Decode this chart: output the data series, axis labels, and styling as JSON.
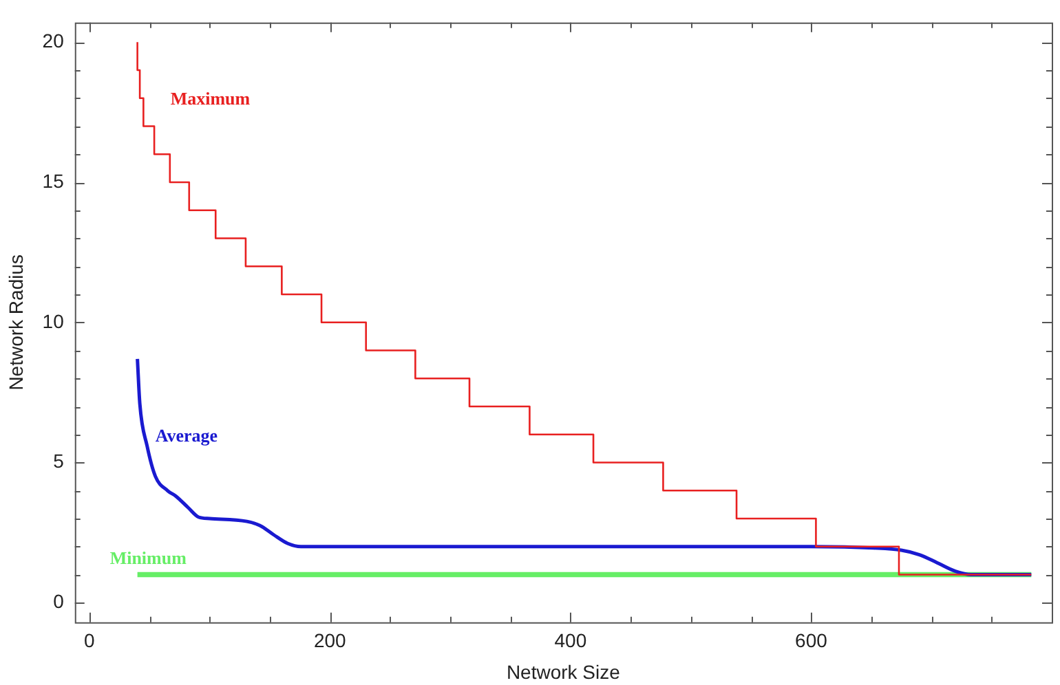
{
  "chart_data": {
    "type": "line",
    "xlabel": "Network Size",
    "ylabel": "Network Radius",
    "xlim": [
      -12,
      800
    ],
    "ylim": [
      -0.7,
      20.7
    ],
    "xticks": [
      0,
      {
        "value": 50,
        "label": null
      },
      {
        "value": 100,
        "label": null
      },
      {
        "value": 150,
        "label": null
      },
      200,
      {
        "value": 250,
        "label": null
      },
      {
        "value": 300,
        "label": null
      },
      {
        "value": 350,
        "label": null
      },
      400,
      {
        "value": 450,
        "label": null
      },
      {
        "value": 500,
        "label": null
      },
      {
        "value": 550,
        "label": null
      },
      600,
      {
        "value": 650,
        "label": null
      },
      {
        "value": 700,
        "label": null
      },
      {
        "value": 750,
        "label": null
      }
    ],
    "yticks": [
      0,
      {
        "value": 1,
        "label": null
      },
      {
        "value": 2,
        "label": null
      },
      {
        "value": 3,
        "label": null
      },
      {
        "value": 4,
        "label": null
      },
      5,
      {
        "value": 6,
        "label": null
      },
      {
        "value": 7,
        "label": null
      },
      {
        "value": 8,
        "label": null
      },
      {
        "value": 9,
        "label": null
      },
      10,
      {
        "value": 11,
        "label": null
      },
      {
        "value": 12,
        "label": null
      },
      {
        "value": 13,
        "label": null
      },
      {
        "value": 14,
        "label": null
      },
      15,
      {
        "value": 16,
        "label": null
      },
      {
        "value": 17,
        "label": null
      },
      {
        "value": 18,
        "label": null
      },
      {
        "value": 19,
        "label": null
      },
      20
    ],
    "grid": false,
    "legend": false,
    "series": [
      {
        "name": "Maximum",
        "type": "step",
        "color": "#e82020",
        "x": [
          40,
          42,
          45,
          54,
          67,
          83,
          105,
          130,
          160,
          193,
          230,
          271,
          316,
          366,
          419,
          477,
          538,
          604,
          673,
          765,
          783
        ],
        "values": [
          20,
          19,
          18,
          17,
          16,
          15,
          14,
          13,
          12,
          11,
          10,
          9,
          8,
          7,
          6,
          5,
          4,
          3,
          2,
          1,
          1
        ]
      },
      {
        "name": "Average",
        "type": "line",
        "color": "#1a1ad0",
        "x": [
          40,
          42,
          48,
          55,
          65,
          72,
          82,
          91,
          100,
          131,
          142,
          153,
          165,
          176,
          200,
          400,
          600,
          652,
          675,
          690,
          705,
          720,
          733,
          783
        ],
        "values": [
          8.7,
          7.1,
          5.6,
          4.5,
          4.0,
          3.8,
          3.4,
          3.05,
          3.0,
          2.9,
          2.75,
          2.43,
          2.11,
          2.0,
          2,
          2,
          2,
          1.95,
          1.87,
          1.71,
          1.42,
          1.12,
          1.0,
          1
        ]
      },
      {
        "name": "Minimum",
        "type": "line",
        "color": "#66ee66",
        "x": [
          40,
          783
        ],
        "values": [
          1,
          1
        ]
      }
    ]
  }
}
